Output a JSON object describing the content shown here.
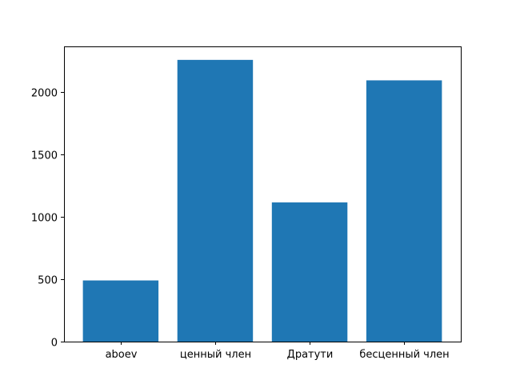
{
  "chart_data": {
    "type": "bar",
    "title": "",
    "xlabel": "",
    "ylabel": "",
    "categories": [
      "aboev",
      "ценный член",
      "Дратути",
      "бесценный член"
    ],
    "values": [
      490,
      2257,
      1115,
      2093
    ],
    "ylim": [
      0,
      2365
    ],
    "yticks": [
      0,
      500,
      1000,
      1500,
      2000
    ],
    "ytick_labels": [
      "0",
      "500",
      "1000",
      "1500",
      "2000"
    ],
    "grid": false,
    "legend": "none",
    "bar_color": "#1f77b4"
  }
}
